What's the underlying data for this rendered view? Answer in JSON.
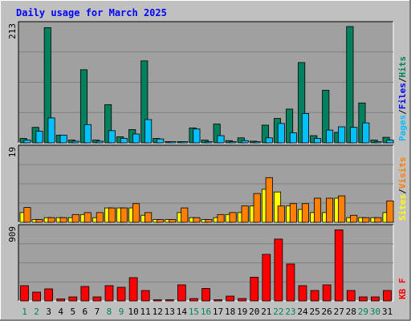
{
  "title": "Daily usage for March 2025",
  "colors": {
    "background": "#c0c0c0",
    "plot": "#a0a0a0",
    "title": "#0000ff",
    "hits": "#00805c",
    "files": "#00c0ff",
    "sites": "#ffff00",
    "visits": "#ff8000",
    "kbytes": "#ff0000",
    "weekend_label": "#00805c",
    "weekday_label": "#000000"
  },
  "chart_data": [
    {
      "type": "bar",
      "panel": "hits-files",
      "ymax_label": "213",
      "ylim": [
        0,
        213
      ],
      "legend": [
        {
          "name": "Pages",
          "color": "#00c0ff"
        },
        {
          "name": "Files",
          "color": "#0000ff"
        },
        {
          "name": "Hits",
          "color": "#00805c"
        }
      ],
      "series": [
        {
          "name": "Hits",
          "values": [
            8,
            28,
            208,
            14,
            5,
            132,
            5,
            69,
            11,
            24,
            148,
            8,
            2,
            2,
            27,
            5,
            34,
            4,
            9,
            3,
            32,
            44,
            61,
            145,
            13,
            95,
            19,
            210,
            72,
            5,
            10
          ]
        },
        {
          "name": "Files",
          "values": [
            5,
            21,
            45,
            14,
            3,
            33,
            3,
            22,
            8,
            16,
            42,
            7,
            1,
            1,
            25,
            2,
            13,
            2,
            4,
            2,
            9,
            35,
            18,
            53,
            8,
            23,
            29,
            28,
            36,
            2,
            5
          ]
        }
      ]
    },
    {
      "type": "bar",
      "panel": "sites-visits",
      "ymax_label": "19",
      "ylim": [
        0,
        19
      ],
      "legend": [
        {
          "name": "Sites",
          "color": "#ffff00"
        },
        {
          "name": "Visits",
          "color": "#ff8000"
        }
      ],
      "series": [
        {
          "name": "Sites",
          "values": [
            2.5,
            0.7,
            1.2,
            1.2,
            1.2,
            2.0,
            1.2,
            3.7,
            3.7,
            3.7,
            1.8,
            0.7,
            0.7,
            2.5,
            1.2,
            0.7,
            1.2,
            2.0,
            2.5,
            4.2,
            8.5,
            7.8,
            4.2,
            3.3,
            2.5,
            2.5,
            6.2,
            1.2,
            1.2,
            1.2,
            2.5
          ]
        },
        {
          "name": "Visits",
          "values": [
            3.8,
            0.7,
            1.2,
            1.2,
            2.0,
            2.5,
            2.5,
            3.7,
            3.7,
            4.8,
            2.5,
            0.7,
            0.7,
            3.7,
            1.2,
            0.7,
            2.0,
            2.5,
            4.2,
            7.4,
            11.5,
            4.2,
            4.8,
            4.8,
            6.2,
            6.2,
            6.8,
            1.8,
            1.2,
            1.2,
            5.5
          ]
        }
      ]
    },
    {
      "type": "bar",
      "panel": "kbytes",
      "ymax_label": "909",
      "ylim": [
        0,
        909
      ],
      "legend": [
        {
          "name": "KB F",
          "color": "#ff0000"
        }
      ],
      "series": [
        {
          "name": "KB F",
          "values": [
            190,
            110,
            150,
            25,
            50,
            180,
            50,
            190,
            170,
            290,
            130,
            8,
            8,
            200,
            30,
            155,
            8,
            60,
            30,
            295,
            580,
            770,
            460,
            190,
            130,
            200,
            885,
            130,
            50,
            50,
            130
          ]
        }
      ]
    }
  ],
  "days": [
    {
      "label": "1",
      "weekend": true
    },
    {
      "label": "2",
      "weekend": true
    },
    {
      "label": "3",
      "weekend": false
    },
    {
      "label": "4",
      "weekend": false
    },
    {
      "label": "5",
      "weekend": false
    },
    {
      "label": "6",
      "weekend": false
    },
    {
      "label": "7",
      "weekend": false
    },
    {
      "label": "8",
      "weekend": true
    },
    {
      "label": "9",
      "weekend": true
    },
    {
      "label": "10",
      "weekend": false
    },
    {
      "label": "11",
      "weekend": false
    },
    {
      "label": "12",
      "weekend": false
    },
    {
      "label": "13",
      "weekend": false
    },
    {
      "label": "14",
      "weekend": false
    },
    {
      "label": "15",
      "weekend": true
    },
    {
      "label": "16",
      "weekend": true
    },
    {
      "label": "17",
      "weekend": false
    },
    {
      "label": "18",
      "weekend": false
    },
    {
      "label": "19",
      "weekend": false
    },
    {
      "label": "20",
      "weekend": false
    },
    {
      "label": "21",
      "weekend": false
    },
    {
      "label": "22",
      "weekend": true
    },
    {
      "label": "23",
      "weekend": true
    },
    {
      "label": "24",
      "weekend": false
    },
    {
      "label": "25",
      "weekend": false
    },
    {
      "label": "26",
      "weekend": false
    },
    {
      "label": "27",
      "weekend": false
    },
    {
      "label": "28",
      "weekend": false
    },
    {
      "label": "29",
      "weekend": true
    },
    {
      "label": "30",
      "weekend": true
    },
    {
      "label": "31",
      "weekend": false
    }
  ]
}
